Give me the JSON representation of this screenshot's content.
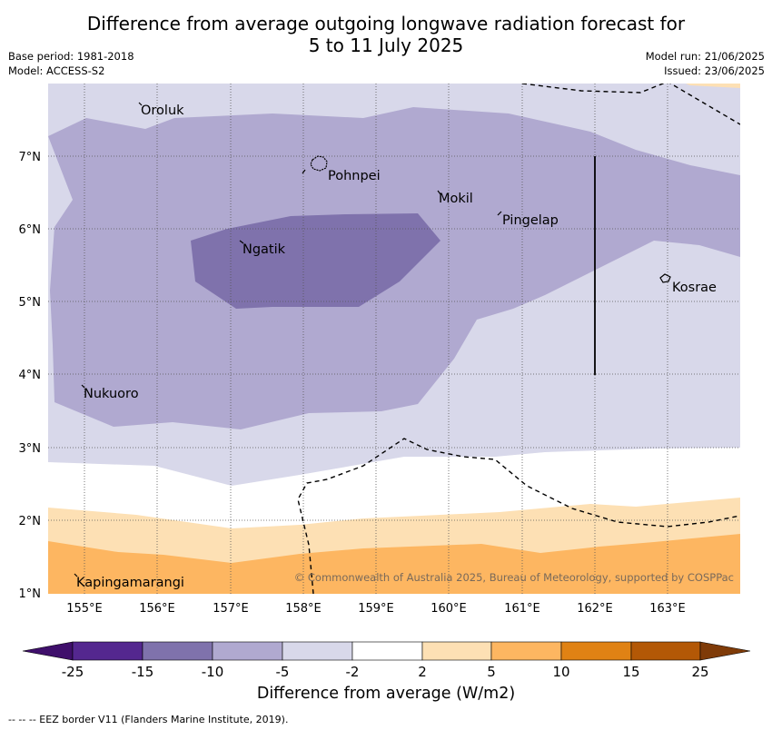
{
  "title_line1": "Difference from average outgoing longwave radiation forecast for",
  "title_line2": "5 to 11 July 2025",
  "base_period": "Base period: 1981-2018",
  "model": "Model: ACCESS-S2",
  "model_run": "Model run: 21/06/2025",
  "issued": "Issued: 23/06/2025",
  "copyright": "© Commonwealth of Australia 2025, Bureau of Meteorology, supported by COSPPac",
  "footer": "--  --  -- EEZ border V11 (Flanders Marine Institute, 2019).",
  "lon_ticks": [
    "155°E",
    "156°E",
    "157°E",
    "158°E",
    "159°E",
    "160°E",
    "161°E",
    "162°E",
    "163°E"
  ],
  "lat_ticks": [
    "7°N",
    "6°N",
    "5°N",
    "4°N",
    "3°N",
    "2°N",
    "1°N"
  ],
  "places": {
    "oroluk": "Oroluk",
    "pohnpei": "Pohnpei",
    "mokil": "Mokil",
    "pingelap": "Pingelap",
    "ngatik": "Ngatik",
    "kosrae": "Kosrae",
    "nukuoro": "Nukuoro",
    "kapingamarangi": "Kapingamarangi"
  },
  "colorbar": {
    "title": "Difference from average (W/m2)",
    "ticks": [
      "-25",
      "-15",
      "-10",
      "-5",
      "-2",
      "2",
      "5",
      "10",
      "15",
      "25"
    ],
    "colors": {
      "lt_-25": "#3f0f6b",
      "-25_-15": "#54278f",
      "-15_-10": "#7f72ac",
      "-10_-5": "#b0a9d0",
      "-5_-2": "#d8d8ea",
      "-2_2": "#ffffff",
      "2_5": "#fde0b4",
      "5_10": "#fdb661",
      "10_15": "#e08214",
      "15_25": "#b35806",
      "gt_25": "#7f3b08"
    }
  }
}
